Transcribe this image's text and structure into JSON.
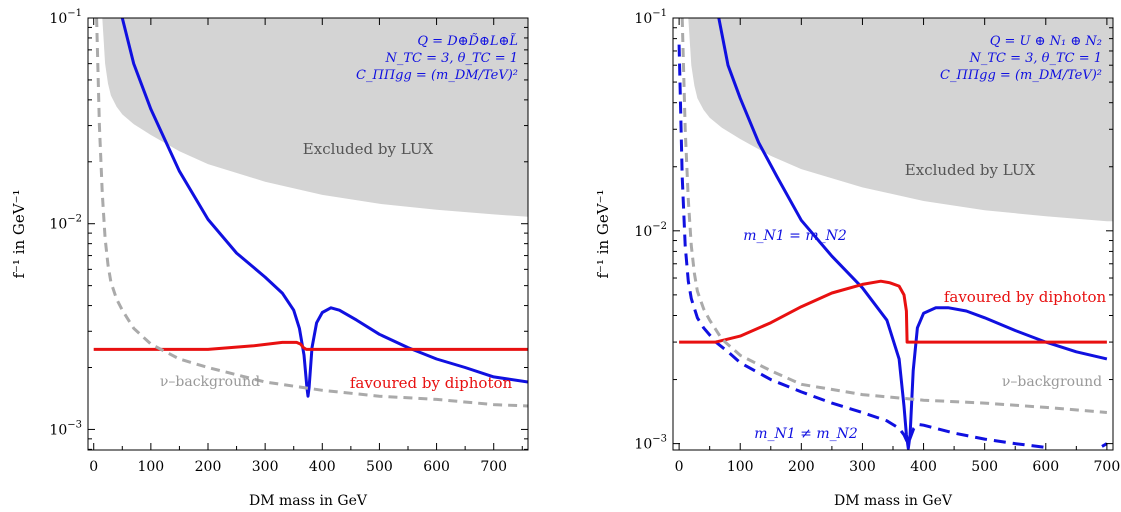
{
  "chart_data": [
    {
      "type": "line",
      "xlabel": "DM mass in GeV",
      "ylabel": "f⁻¹ in GeV⁻¹",
      "xlim": [
        -10,
        760
      ],
      "ylim_log10": [
        -3.1,
        -1
      ],
      "yscale": "log",
      "x_ticks": [
        0,
        100,
        200,
        300,
        400,
        500,
        600,
        700
      ],
      "y_ticks": [
        {
          "exp": -3,
          "label": "10",
          "sup": "−3"
        },
        {
          "exp": -2,
          "label": "10",
          "sup": "−2"
        },
        {
          "exp": -1,
          "label": "10",
          "sup": "−1"
        }
      ],
      "title_lines": [
        "Q = D⊕D̃⊕L⊕L̃",
        "N_TC = 3, θ_TC = 1",
        "C_ΠΠgg = (m_DM/TeV)²"
      ],
      "annotations": {
        "excluded": "Excluded by LUX",
        "diphoton": "favoured by diphoton",
        "nu_background": "ν–background"
      },
      "colors": {
        "model": "#1010e0",
        "diphoton": "#e81010",
        "background": "#aaaaaa",
        "excluded": "#d4d4d4"
      },
      "series": [
        {
          "key": "lux",
          "x": [
            15,
            20,
            25,
            30,
            40,
            50,
            70,
            100,
            150,
            200,
            300,
            400,
            500,
            600,
            700,
            760
          ],
          "y": [
            0.1,
            0.06,
            0.048,
            0.042,
            0.037,
            0.034,
            0.0305,
            0.027,
            0.0225,
            0.0195,
            0.016,
            0.0138,
            0.0125,
            0.0117,
            0.0111,
            0.0108
          ]
        },
        {
          "key": "model",
          "x": [
            50,
            70,
            100,
            150,
            200,
            250,
            300,
            330,
            350,
            360,
            368,
            373,
            375,
            377,
            382,
            390,
            400,
            415,
            430,
            460,
            500,
            550,
            600,
            650,
            700,
            760
          ],
          "y": [
            0.1,
            0.06,
            0.036,
            0.018,
            0.0105,
            0.0072,
            0.0055,
            0.0046,
            0.0038,
            0.0031,
            0.0023,
            0.0016,
            0.00145,
            0.0016,
            0.0025,
            0.0033,
            0.0037,
            0.0039,
            0.0038,
            0.0034,
            0.0029,
            0.0025,
            0.0022,
            0.002,
            0.0018,
            0.0017
          ]
        },
        {
          "key": "diphoton",
          "x": [
            0,
            100,
            200,
            280,
            330,
            355,
            362,
            367,
            372,
            760
          ],
          "y": [
            0.00245,
            0.00245,
            0.00245,
            0.00255,
            0.00265,
            0.00265,
            0.0026,
            0.0025,
            0.00245,
            0.00245
          ]
        },
        {
          "key": "background",
          "x": [
            5,
            10,
            15,
            20,
            25,
            30,
            40,
            50,
            70,
            100,
            150,
            200,
            300,
            400,
            500,
            600,
            700,
            760
          ],
          "y": [
            0.1,
            0.03,
            0.014,
            0.0085,
            0.0063,
            0.0052,
            0.0043,
            0.0038,
            0.0031,
            0.0026,
            0.0022,
            0.002,
            0.0017,
            0.00155,
            0.00145,
            0.0014,
            0.00132,
            0.0013
          ]
        }
      ]
    },
    {
      "type": "line",
      "xlabel": "DM mass in GeV",
      "ylabel": "f⁻¹ in GeV⁻¹",
      "xlim": [
        -10,
        710
      ],
      "ylim_log10": [
        -3.03,
        -1
      ],
      "yscale": "log",
      "x_ticks": [
        0,
        100,
        200,
        300,
        400,
        500,
        600,
        700
      ],
      "y_ticks": [
        {
          "exp": -3,
          "label": "10",
          "sup": "−3"
        },
        {
          "exp": -2,
          "label": "10",
          "sup": "−2"
        },
        {
          "exp": -1,
          "label": "10",
          "sup": "−1"
        }
      ],
      "title_lines": [
        "Q = U ⊕ N₁ ⊕ N₂",
        "N_TC = 3, θ_TC = 1",
        "C_ΠΠgg = (m_DM/TeV)²"
      ],
      "annotations": {
        "excluded": "Excluded by LUX",
        "diphoton": "favoured by diphoton",
        "nu_background": "ν–background",
        "equal_mass": "m_N1 = m_N2",
        "unequal_mass": "m_N1 ≠ m_N2"
      },
      "colors": {
        "model": "#1010e0",
        "diphoton": "#e81010",
        "background": "#aaaaaa",
        "excluded": "#d4d4d4"
      },
      "series": [
        {
          "key": "lux",
          "x": [
            15,
            20,
            25,
            30,
            40,
            50,
            70,
            100,
            150,
            200,
            300,
            400,
            500,
            600,
            700
          ],
          "y": [
            0.1,
            0.06,
            0.048,
            0.042,
            0.037,
            0.034,
            0.0305,
            0.027,
            0.0225,
            0.0195,
            0.016,
            0.0138,
            0.0125,
            0.0117,
            0.0111
          ]
        },
        {
          "key": "model",
          "x": [
            65,
            80,
            100,
            130,
            160,
            200,
            250,
            300,
            340,
            360,
            368,
            372,
            375,
            378,
            383,
            390,
            400,
            420,
            440,
            470,
            500,
            550,
            600,
            650,
            700
          ],
          "y": [
            0.1,
            0.06,
            0.042,
            0.026,
            0.018,
            0.0112,
            0.0076,
            0.0054,
            0.0038,
            0.0025,
            0.0015,
            0.0011,
            0.00095,
            0.0011,
            0.0022,
            0.0035,
            0.0041,
            0.00435,
            0.00435,
            0.0042,
            0.0039,
            0.0034,
            0.003,
            0.0027,
            0.0025
          ]
        },
        {
          "key": "model_unequal",
          "x": [
            0,
            5,
            10,
            15,
            20,
            30,
            40,
            60,
            80,
            100,
            150,
            200,
            250,
            300,
            340,
            360,
            368,
            372,
            375,
            378,
            384,
            392,
            400,
            420,
            450,
            500,
            550,
            600
          ],
          "y": [
            0.075,
            0.018,
            0.0085,
            0.0058,
            0.0048,
            0.0039,
            0.0035,
            0.003,
            0.0027,
            0.0024,
            0.002,
            0.00175,
            0.00155,
            0.0014,
            0.00128,
            0.00118,
            0.0011,
            0.00104,
            0.001,
            0.00106,
            0.00118,
            0.00123,
            0.00122,
            0.00118,
            0.00112,
            0.00105,
            0.001,
            0.00096
          ]
        },
        {
          "key": "model_unequal_tail",
          "x": [
            692,
            700
          ],
          "y": [
            0.00097,
            0.001
          ]
        },
        {
          "key": "diphoton",
          "x": [
            0,
            60,
            100,
            150,
            200,
            250,
            300,
            330,
            345,
            360,
            368,
            372,
            373,
            700
          ],
          "y": [
            0.003,
            0.003,
            0.0032,
            0.0037,
            0.0044,
            0.0051,
            0.0056,
            0.0058,
            0.0057,
            0.0055,
            0.005,
            0.0042,
            0.003,
            0.003
          ]
        },
        {
          "key": "background",
          "x": [
            5,
            10,
            15,
            20,
            25,
            30,
            40,
            50,
            70,
            100,
            150,
            200,
            300,
            400,
            500,
            600,
            700
          ],
          "y": [
            0.1,
            0.03,
            0.014,
            0.0085,
            0.0063,
            0.0052,
            0.0043,
            0.0038,
            0.0031,
            0.0026,
            0.0022,
            0.0019,
            0.0017,
            0.0016,
            0.00155,
            0.00148,
            0.0014
          ]
        }
      ]
    }
  ]
}
